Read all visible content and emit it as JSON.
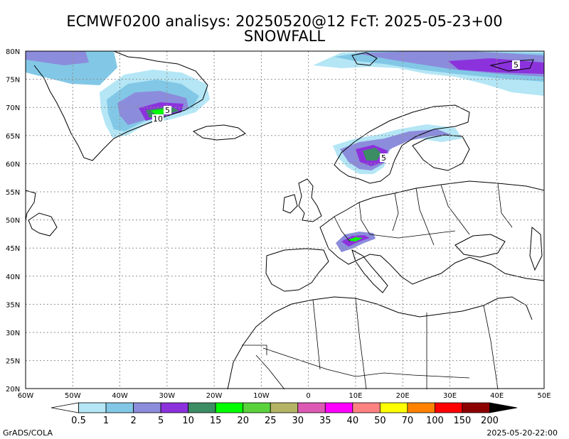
{
  "title": "ECMWF0200 analisys: 20250520@12 FcT: 2025-05-23+00",
  "subtitle": "SNOWFALL",
  "y_ticks": [
    "80N",
    "75N",
    "70N",
    "65N",
    "60N",
    "55N",
    "50N",
    "45N",
    "40N",
    "35N",
    "30N",
    "25N",
    "20N"
  ],
  "x_ticks": [
    "60W",
    "50W",
    "40W",
    "30W",
    "20W",
    "10W",
    "0",
    "10E",
    "20E",
    "30E",
    "40E",
    "50E"
  ],
  "map_region": {
    "lon_range": [
      -60,
      50
    ],
    "lat_range": [
      20,
      80
    ],
    "grid_step_deg": 5
  },
  "legend": {
    "labels": [
      "0.5",
      "1",
      "2",
      "5",
      "10",
      "15",
      "20",
      "25",
      "30",
      "35",
      "40",
      "50",
      "70",
      "100",
      "150",
      "200"
    ],
    "colors": [
      "#ffffff",
      "#b4e6f5",
      "#82c8e6",
      "#8c8cdc",
      "#8c32dc",
      "#3c8c64",
      "#00ff00",
      "#5ad23c",
      "#b4b464",
      "#dc5ab4",
      "#ff00ff",
      "#ff8282",
      "#ffff00",
      "#ff8200",
      "#ff0000",
      "#8c0000",
      "#000000"
    ]
  },
  "contour_labels": [
    "5",
    "10",
    "5",
    "5"
  ],
  "footer_left": "GrADS/COLA",
  "footer_right": "2025-05-20-22:00"
}
